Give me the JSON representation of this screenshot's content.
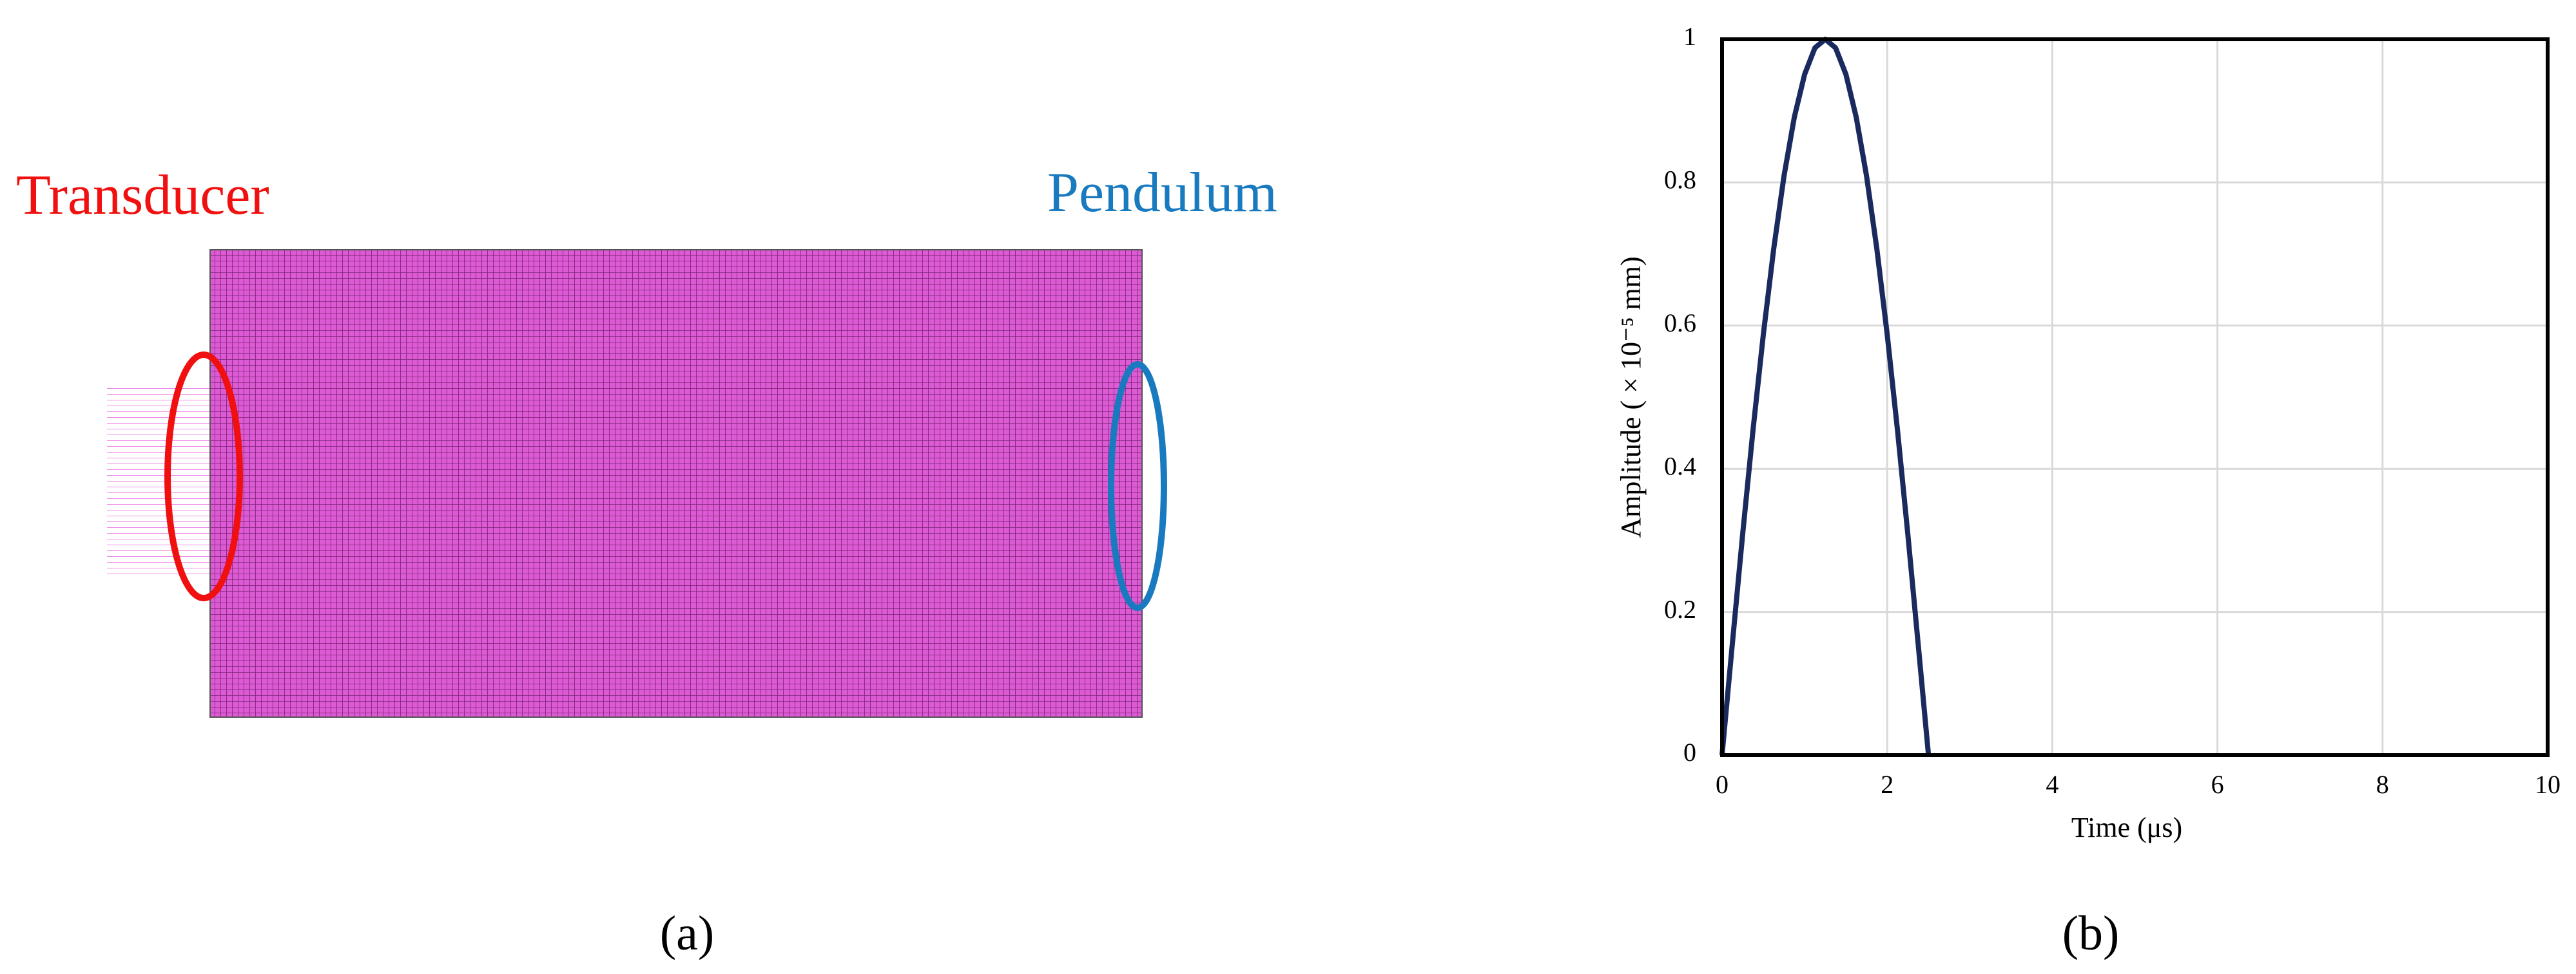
{
  "panel_a": {
    "transducer_label": "Transducer",
    "pendulum_label": "Pendulum",
    "caption": "(a)"
  },
  "chart_data": {
    "type": "line",
    "caption": "(b)",
    "x_label": "Time (μs)",
    "y_label": "Amplitude ( × 10⁻⁵ mm)",
    "x": [
      0,
      0.125,
      0.25,
      0.375,
      0.5,
      0.625,
      0.75,
      0.875,
      1,
      1.125,
      1.25,
      1.375,
      1.5,
      1.625,
      1.75,
      1.875,
      2,
      2.125,
      2.25,
      2.375,
      2.5
    ],
    "values": [
      0,
      0.156,
      0.309,
      0.454,
      0.588,
      0.707,
      0.809,
      0.891,
      0.951,
      0.988,
      1,
      0.988,
      0.951,
      0.891,
      0.809,
      0.707,
      0.588,
      0.454,
      0.309,
      0.156,
      0
    ],
    "color": "#1b2a5e",
    "xlim": [
      0,
      10
    ],
    "xticks": [
      0,
      2,
      4,
      6,
      8,
      10
    ],
    "ylim": [
      0,
      1
    ],
    "yticks": [
      0,
      0.2,
      0.4,
      0.6,
      0.8,
      1
    ],
    "grid": true
  }
}
